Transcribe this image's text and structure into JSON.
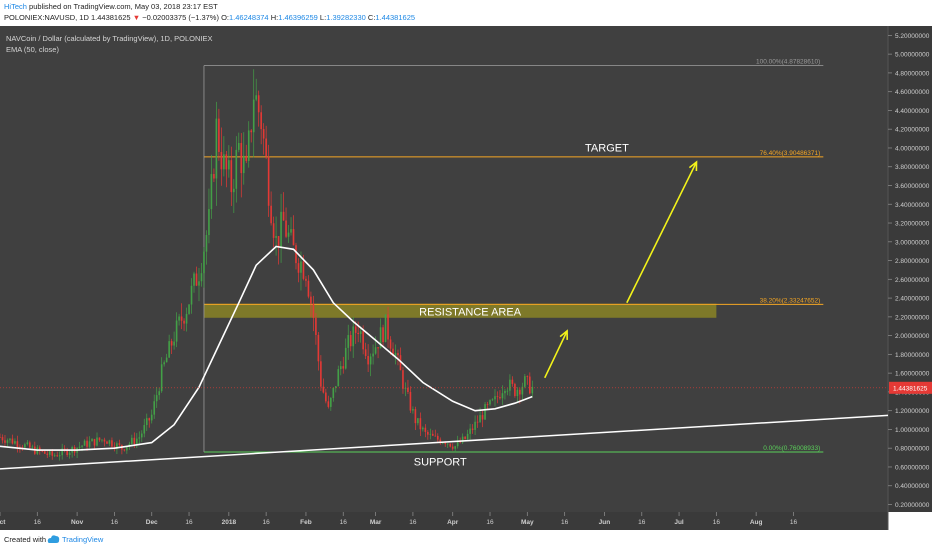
{
  "header": {
    "author": "HiTech",
    "published": "published on TradingView.com, May 03, 2018 23:17 EST",
    "symbol": "POLONIEX:NAVUSD, 1D",
    "last": "1.44381625",
    "change": "−0.02003375 (−1.37%)",
    "ohlc": [
      {
        "k": "O:",
        "v": "1.46248374"
      },
      {
        "k": "H:",
        "v": "1.46396259"
      },
      {
        "k": "L:",
        "v": "1.39282330"
      },
      {
        "k": "C:",
        "v": "1.44381625"
      }
    ]
  },
  "chart_data": {
    "type": "candlestick",
    "title": "NAVCoin / Dollar (calculated by TradingView), 1D, POLONIEX",
    "indicator_label": "EMA (50, close)",
    "yaxis": {
      "min": 0.12,
      "max": 5.3,
      "ticks": [
        "5.20000000",
        "5.00000000",
        "4.80000000",
        "4.60000000",
        "4.40000000",
        "4.20000000",
        "4.00000000",
        "3.80000000",
        "3.60000000",
        "3.40000000",
        "3.20000000",
        "3.00000000",
        "2.80000000",
        "2.60000000",
        "2.40000000",
        "2.20000000",
        "2.00000000",
        "1.80000000",
        "1.60000000",
        "1.40000000",
        "1.20000000",
        "1.00000000",
        "0.80000000",
        "0.60000000",
        "0.40000000",
        "0.20000000"
      ]
    },
    "xaxis": {
      "start": "2017-10-01",
      "end": "2018-09-23",
      "ticks": [
        {
          "label": "Oct",
          "date": "2017-10-01"
        },
        {
          "label": "16",
          "date": "2017-10-16"
        },
        {
          "label": "Nov",
          "date": "2017-11-01"
        },
        {
          "label": "16",
          "date": "2017-11-16"
        },
        {
          "label": "Dec",
          "date": "2017-12-01"
        },
        {
          "label": "16",
          "date": "2017-12-16"
        },
        {
          "label": "2018",
          "date": "2018-01-01"
        },
        {
          "label": "16",
          "date": "2018-01-16"
        },
        {
          "label": "Feb",
          "date": "2018-02-01"
        },
        {
          "label": "16",
          "date": "2018-02-16"
        },
        {
          "label": "Mar",
          "date": "2018-03-01"
        },
        {
          "label": "16",
          "date": "2018-03-16"
        },
        {
          "label": "Apr",
          "date": "2018-04-01"
        },
        {
          "label": "16",
          "date": "2018-04-16"
        },
        {
          "label": "May",
          "date": "2018-05-01"
        },
        {
          "label": "16",
          "date": "2018-05-16"
        },
        {
          "label": "Jun",
          "date": "2018-06-01"
        },
        {
          "label": "16",
          "date": "2018-06-16"
        },
        {
          "label": "Jul",
          "date": "2018-07-01"
        },
        {
          "label": "16",
          "date": "2018-07-16"
        },
        {
          "label": "Aug",
          "date": "2018-08-01"
        },
        {
          "label": "16",
          "date": "2018-08-16"
        }
      ]
    },
    "price_close": [
      [
        "2017-10-01",
        0.92
      ],
      [
        "2017-10-08",
        0.86
      ],
      [
        "2017-10-15",
        0.78
      ],
      [
        "2017-10-22",
        0.72
      ],
      [
        "2017-10-29",
        0.78
      ],
      [
        "2017-11-05",
        0.85
      ],
      [
        "2017-11-12",
        0.9
      ],
      [
        "2017-11-19",
        0.8
      ],
      [
        "2017-11-26",
        0.92
      ],
      [
        "2017-12-01",
        1.15
      ],
      [
        "2017-12-05",
        1.6
      ],
      [
        "2017-12-10",
        2.0
      ],
      [
        "2017-12-15",
        2.3
      ],
      [
        "2017-12-20",
        2.7
      ],
      [
        "2017-12-24",
        3.2
      ],
      [
        "2017-12-27",
        4.2
      ],
      [
        "2017-12-30",
        3.8
      ],
      [
        "2018-01-02",
        3.6
      ],
      [
        "2018-01-05",
        4.0
      ],
      [
        "2018-01-08",
        3.7
      ],
      [
        "2018-01-11",
        4.6
      ],
      [
        "2018-01-14",
        4.3
      ],
      [
        "2018-01-17",
        3.6
      ],
      [
        "2018-01-20",
        3.0
      ],
      [
        "2018-01-23",
        3.2
      ],
      [
        "2018-01-27",
        2.9
      ],
      [
        "2018-02-01",
        2.7
      ],
      [
        "2018-02-04",
        2.2
      ],
      [
        "2018-02-07",
        1.5
      ],
      [
        "2018-02-10",
        1.2
      ],
      [
        "2018-02-14",
        1.6
      ],
      [
        "2018-02-18",
        1.9
      ],
      [
        "2018-02-22",
        2.1
      ],
      [
        "2018-02-26",
        1.8
      ],
      [
        "2018-03-01",
        1.9
      ],
      [
        "2018-03-05",
        2.1
      ],
      [
        "2018-03-09",
        1.8
      ],
      [
        "2018-03-13",
        1.4
      ],
      [
        "2018-03-17",
        1.1
      ],
      [
        "2018-03-21",
        0.95
      ],
      [
        "2018-03-25",
        0.9
      ],
      [
        "2018-03-29",
        0.88
      ],
      [
        "2018-04-02",
        0.82
      ],
      [
        "2018-04-06",
        0.9
      ],
      [
        "2018-04-10",
        1.05
      ],
      [
        "2018-04-14",
        1.2
      ],
      [
        "2018-04-18",
        1.3
      ],
      [
        "2018-04-22",
        1.5
      ],
      [
        "2018-04-26",
        1.42
      ],
      [
        "2018-04-30",
        1.5
      ],
      [
        "2018-05-03",
        1.44
      ]
    ],
    "ema_50": [
      [
        "2017-10-01",
        0.82
      ],
      [
        "2017-10-16",
        0.78
      ],
      [
        "2017-11-01",
        0.78
      ],
      [
        "2017-11-16",
        0.8
      ],
      [
        "2017-12-01",
        0.86
      ],
      [
        "2017-12-10",
        1.05
      ],
      [
        "2017-12-20",
        1.45
      ],
      [
        "2017-12-28",
        1.9
      ],
      [
        "2018-01-05",
        2.35
      ],
      [
        "2018-01-12",
        2.75
      ],
      [
        "2018-01-20",
        2.95
      ],
      [
        "2018-01-27",
        2.92
      ],
      [
        "2018-02-04",
        2.7
      ],
      [
        "2018-02-12",
        2.35
      ],
      [
        "2018-02-20",
        2.15
      ],
      [
        "2018-03-01",
        1.95
      ],
      [
        "2018-03-10",
        1.75
      ],
      [
        "2018-03-20",
        1.5
      ],
      [
        "2018-04-01",
        1.3
      ],
      [
        "2018-04-10",
        1.2
      ],
      [
        "2018-04-18",
        1.22
      ],
      [
        "2018-04-26",
        1.28
      ],
      [
        "2018-05-03",
        1.35
      ]
    ],
    "last_price": "1.44381625",
    "fibonacci": [
      {
        "label": "100.00%",
        "value": "4.87828610"
      },
      {
        "label": "76.40%",
        "value": "3.90486371"
      },
      {
        "label": "38.20%",
        "value": "2.33247652"
      },
      {
        "label": "0.00%",
        "value": "0.76008933"
      }
    ],
    "resistance_zone": [
      2.19,
      2.34
    ],
    "trendline": [
      [
        "2017-10-01",
        0.58
      ],
      [
        "2018-09-23",
        1.15
      ]
    ],
    "projection_arrows": [
      [
        [
          "2018-05-08",
          1.55
        ],
        [
          "2018-05-17",
          2.05
        ]
      ],
      [
        [
          "2018-06-10",
          2.35
        ],
        [
          "2018-07-08",
          3.85
        ]
      ]
    ],
    "annotations": {
      "target": "TARGET",
      "resistance": "RESISTANCE AREA",
      "support": "SUPPORT"
    },
    "colors": {
      "background": "#404040",
      "axis_background": "#3a3a3a",
      "up": "#43a047",
      "down": "#e53935",
      "ema": "#ffffff",
      "fib": "#f5a623",
      "support": "#5ad05a",
      "zone": "#8a8426",
      "arrow": "#f3f31a",
      "last_price_bg": "#e53935"
    }
  },
  "footer": {
    "created_with": "Created with",
    "brand": "TradingView"
  }
}
